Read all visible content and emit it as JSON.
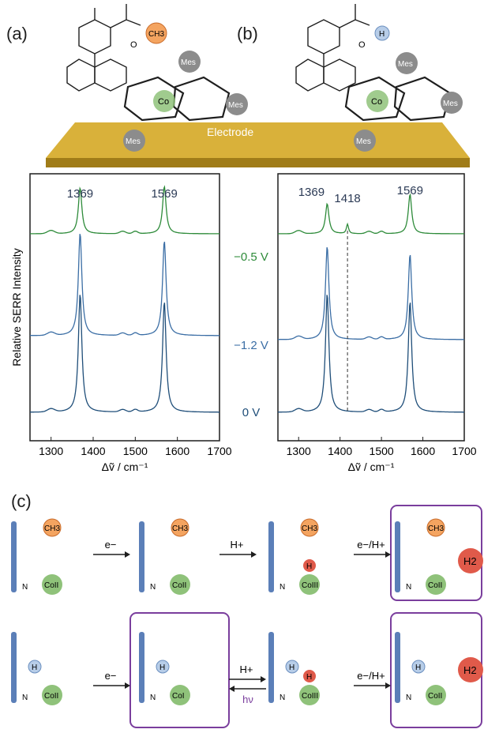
{
  "panel_labels": {
    "a": "(a)",
    "b": "(b)",
    "c": "(c)"
  },
  "figure_text": {
    "electrode": "Electrode",
    "ch3": "CH3",
    "h": "H",
    "o": "O",
    "co": "Co",
    "n": "N",
    "mes": "Mes",
    "h2": "H2",
    "e_minus": "e−",
    "h_plus": "H+",
    "e_h": "e−/H+",
    "hv": "hν",
    "co_ii": "CoII",
    "co_i": "CoI",
    "co_iii": "CoIII"
  },
  "colors": {
    "green": "#2e8b3a",
    "blue": "#3b6ea5",
    "dark_blue": "#1f4e79",
    "gold": "#c9a227",
    "purple": "#7a3e9d"
  },
  "chart_data": [
    {
      "type": "line",
      "xlabel": "Δṽ / cm⁻¹",
      "ylabel": "Relative SERR Intensity",
      "xlim": [
        1250,
        1700
      ],
      "xticks": [
        "1300",
        "1400",
        "1500",
        "1600",
        "1700"
      ],
      "grid": false,
      "series": [
        {
          "name": "−0.5 V",
          "peaks": [
            1369,
            1569
          ]
        },
        {
          "name": "−1.2 V",
          "peaks": [
            1369,
            1569
          ]
        },
        {
          "name": "0 V",
          "peaks": [
            1369,
            1569
          ]
        }
      ],
      "annotations": [
        "1369",
        "1569"
      ]
    },
    {
      "type": "line",
      "xlabel": "Δṽ / cm⁻¹",
      "xlim": [
        1250,
        1700
      ],
      "xticks": [
        "1300",
        "1400",
        "1500",
        "1600",
        "1700"
      ],
      "grid": false,
      "series": [
        {
          "peaks": [
            1369,
            1418,
            1569
          ]
        },
        {
          "peaks": [
            1369,
            1569
          ]
        },
        {
          "peaks": [
            1369,
            1569
          ]
        }
      ],
      "annotations": [
        "1369",
        "1418",
        "1569"
      ],
      "dashed_line_x": 1418
    }
  ]
}
